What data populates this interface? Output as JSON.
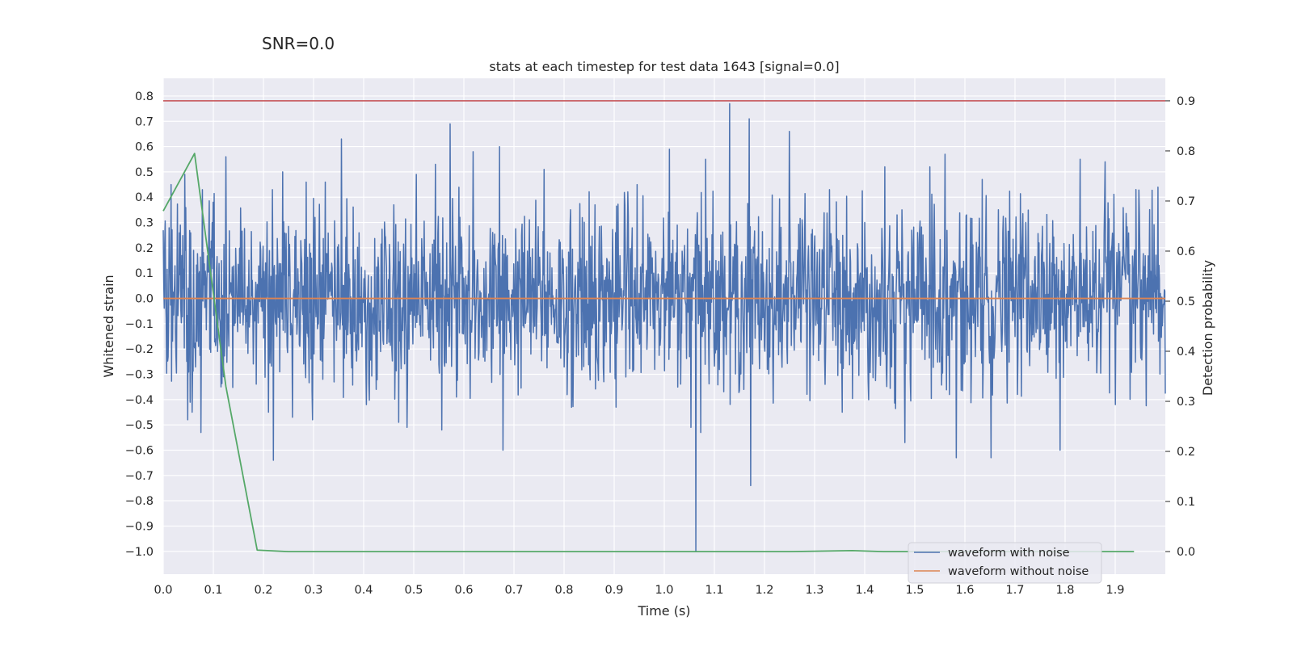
{
  "suptitle": "SNR=0.0",
  "colors": {
    "plot_background": "#eaeaf2",
    "grid": "#ffffff",
    "noisy": "#4c72b0",
    "clean": "#dd8452",
    "probability": "#55a868",
    "threshold": "#c44e52"
  },
  "chart_data": {
    "type": "line",
    "title": "stats at each timestep for test data 1643 [signal=0.0]",
    "xlabel": "Time (s)",
    "ylabel": "Whitened strain",
    "y2label": "Detection probability",
    "xlim": [
      0.0,
      2.0
    ],
    "ylim": [
      -1.09,
      0.87
    ],
    "y2lim": [
      -0.045,
      0.945
    ],
    "xticks": [
      "0.0",
      "0.1",
      "0.2",
      "0.3",
      "0.4",
      "0.5",
      "0.6",
      "0.7",
      "0.8",
      "0.9",
      "1.0",
      "1.1",
      "1.2",
      "1.3",
      "1.4",
      "1.5",
      "1.6",
      "1.7",
      "1.8",
      "1.9"
    ],
    "yticks": [
      "0.8",
      "0.7",
      "0.6",
      "0.5",
      "0.4",
      "0.3",
      "0.2",
      "0.1",
      "0.0",
      "−0.1",
      "−0.2",
      "−0.3",
      "−0.4",
      "−0.5",
      "−0.6",
      "−0.7",
      "−0.8",
      "−0.9",
      "−1.0"
    ],
    "y2ticks": [
      "0.9",
      "0.8",
      "0.7",
      "0.6",
      "0.5",
      "0.4",
      "0.3",
      "0.2",
      "0.1",
      "0.0"
    ],
    "grid": true,
    "legend": {
      "placement": "lower-right",
      "entries": [
        "waveform with noise",
        "waveform without noise"
      ]
    },
    "series": [
      {
        "name": "waveform with noise",
        "axis": "left",
        "kind": "noise",
        "n_samples": 2048,
        "amplitude_range": [
          -1.0,
          0.77
        ],
        "spikes": [
          {
            "x": 0.016,
            "y": 0.45
          },
          {
            "x": 0.025,
            "y": -0.23
          },
          {
            "x": 0.034,
            "y": 0.29
          },
          {
            "x": 0.043,
            "y": 0.49
          },
          {
            "x": 0.049,
            "y": -0.48
          },
          {
            "x": 0.058,
            "y": -0.45
          },
          {
            "x": 0.067,
            "y": -0.17
          },
          {
            "x": 0.075,
            "y": -0.53
          },
          {
            "x": 0.078,
            "y": 0.43
          },
          {
            "x": 0.1,
            "y": 0.38
          },
          {
            "x": 0.115,
            "y": -0.35
          },
          {
            "x": 0.125,
            "y": 0.56
          },
          {
            "x": 0.21,
            "y": -0.45
          },
          {
            "x": 0.218,
            "y": 0.43
          },
          {
            "x": 0.22,
            "y": -0.64
          },
          {
            "x": 0.238,
            "y": 0.5
          },
          {
            "x": 0.258,
            "y": -0.47
          },
          {
            "x": 0.285,
            "y": 0.46
          },
          {
            "x": 0.298,
            "y": -0.48
          },
          {
            "x": 0.323,
            "y": 0.46
          },
          {
            "x": 0.356,
            "y": 0.63
          },
          {
            "x": 0.405,
            "y": -0.42
          },
          {
            "x": 0.46,
            "y": 0.37
          },
          {
            "x": 0.47,
            "y": -0.49
          },
          {
            "x": 0.487,
            "y": -0.51
          },
          {
            "x": 0.505,
            "y": 0.49
          },
          {
            "x": 0.543,
            "y": 0.53
          },
          {
            "x": 0.556,
            "y": -0.52
          },
          {
            "x": 0.573,
            "y": 0.69
          },
          {
            "x": 0.618,
            "y": 0.58
          },
          {
            "x": 0.671,
            "y": 0.6
          },
          {
            "x": 0.678,
            "y": -0.6
          },
          {
            "x": 0.76,
            "y": 0.51
          },
          {
            "x": 0.862,
            "y": 0.37
          },
          {
            "x": 0.904,
            "y": -0.43
          },
          {
            "x": 0.946,
            "y": 0.45
          },
          {
            "x": 1.01,
            "y": 0.59
          },
          {
            "x": 1.053,
            "y": -0.51
          },
          {
            "x": 1.063,
            "y": -1.0
          },
          {
            "x": 1.073,
            "y": -0.53
          },
          {
            "x": 1.083,
            "y": 0.55
          },
          {
            "x": 1.13,
            "y": 0.77
          },
          {
            "x": 1.17,
            "y": 0.71
          },
          {
            "x": 1.172,
            "y": -0.74
          },
          {
            "x": 1.25,
            "y": 0.66
          },
          {
            "x": 1.33,
            "y": 0.43
          },
          {
            "x": 1.355,
            "y": -0.45
          },
          {
            "x": 1.44,
            "y": 0.52
          },
          {
            "x": 1.48,
            "y": -0.57
          },
          {
            "x": 1.53,
            "y": 0.52
          },
          {
            "x": 1.56,
            "y": 0.57
          },
          {
            "x": 1.583,
            "y": -0.63
          },
          {
            "x": 1.635,
            "y": 0.47
          },
          {
            "x": 1.652,
            "y": -0.63
          },
          {
            "x": 1.79,
            "y": -0.6
          },
          {
            "x": 1.83,
            "y": 0.55
          },
          {
            "x": 1.88,
            "y": 0.54
          },
          {
            "x": 1.9,
            "y": -0.42
          },
          {
            "x": 1.985,
            "y": 0.44
          }
        ]
      },
      {
        "name": "waveform without noise",
        "axis": "left",
        "x": [
          0.0,
          2.0
        ],
        "y": [
          0.0,
          0.0
        ]
      },
      {
        "axis": "right",
        "x": [
          0.0,
          0.0625,
          0.125,
          0.1875,
          0.25,
          0.3125,
          0.375,
          0.4375,
          0.5,
          0.5625,
          0.625,
          0.6875,
          0.75,
          0.8125,
          0.875,
          0.9375,
          1.0,
          1.0625,
          1.125,
          1.1875,
          1.25,
          1.3125,
          1.375,
          1.4375,
          1.5,
          1.5625,
          1.625,
          1.6875,
          1.75,
          1.8125,
          1.875,
          1.9375
        ],
        "y": [
          0.68,
          0.795,
          0.33,
          0.003,
          0.0,
          0.0,
          0.0,
          0.0,
          0.0,
          0.0,
          0.0,
          0.0,
          0.0,
          0.0,
          0.0,
          0.0,
          0.0,
          0.0,
          0.0,
          0.0,
          0.0,
          0.001,
          0.002,
          0.0,
          0.0,
          0.0,
          0.0,
          0.0,
          0.0,
          0.0,
          0.0,
          0.0
        ]
      },
      {
        "axis": "right",
        "kind": "threshold",
        "y": 0.9
      }
    ]
  }
}
